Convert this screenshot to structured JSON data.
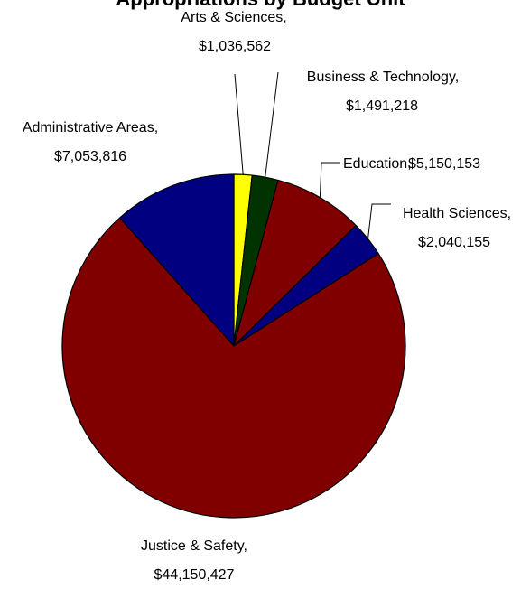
{
  "chart_data": {
    "type": "pie",
    "title": "Appropriations by Budget Unit",
    "slices": [
      {
        "name": "Arts & Sciences,",
        "value_label": "$1,036,562",
        "value": 1036562,
        "color": "#ffff00"
      },
      {
        "name": "Business & Technology,",
        "value_label": "$1,491,218",
        "value": 1491218,
        "color": "#003300"
      },
      {
        "name": "Education,",
        "value_label": "$5,150,153",
        "value": 5150153,
        "color": "#800000"
      },
      {
        "name": "Health Sciences,",
        "value_label": "$2,040,155",
        "value": 2040155,
        "color": "#000080"
      },
      {
        "name": "Justice & Safety,",
        "value_label": "$44,150,427",
        "value": 44150427,
        "color": "#800000"
      },
      {
        "name": "Administrative Areas,",
        "value_label": "$7,053,816",
        "value": 7053816,
        "color": "#000080"
      }
    ],
    "start_angle_deg": 0,
    "direction": "clockwise",
    "legend": "none"
  }
}
